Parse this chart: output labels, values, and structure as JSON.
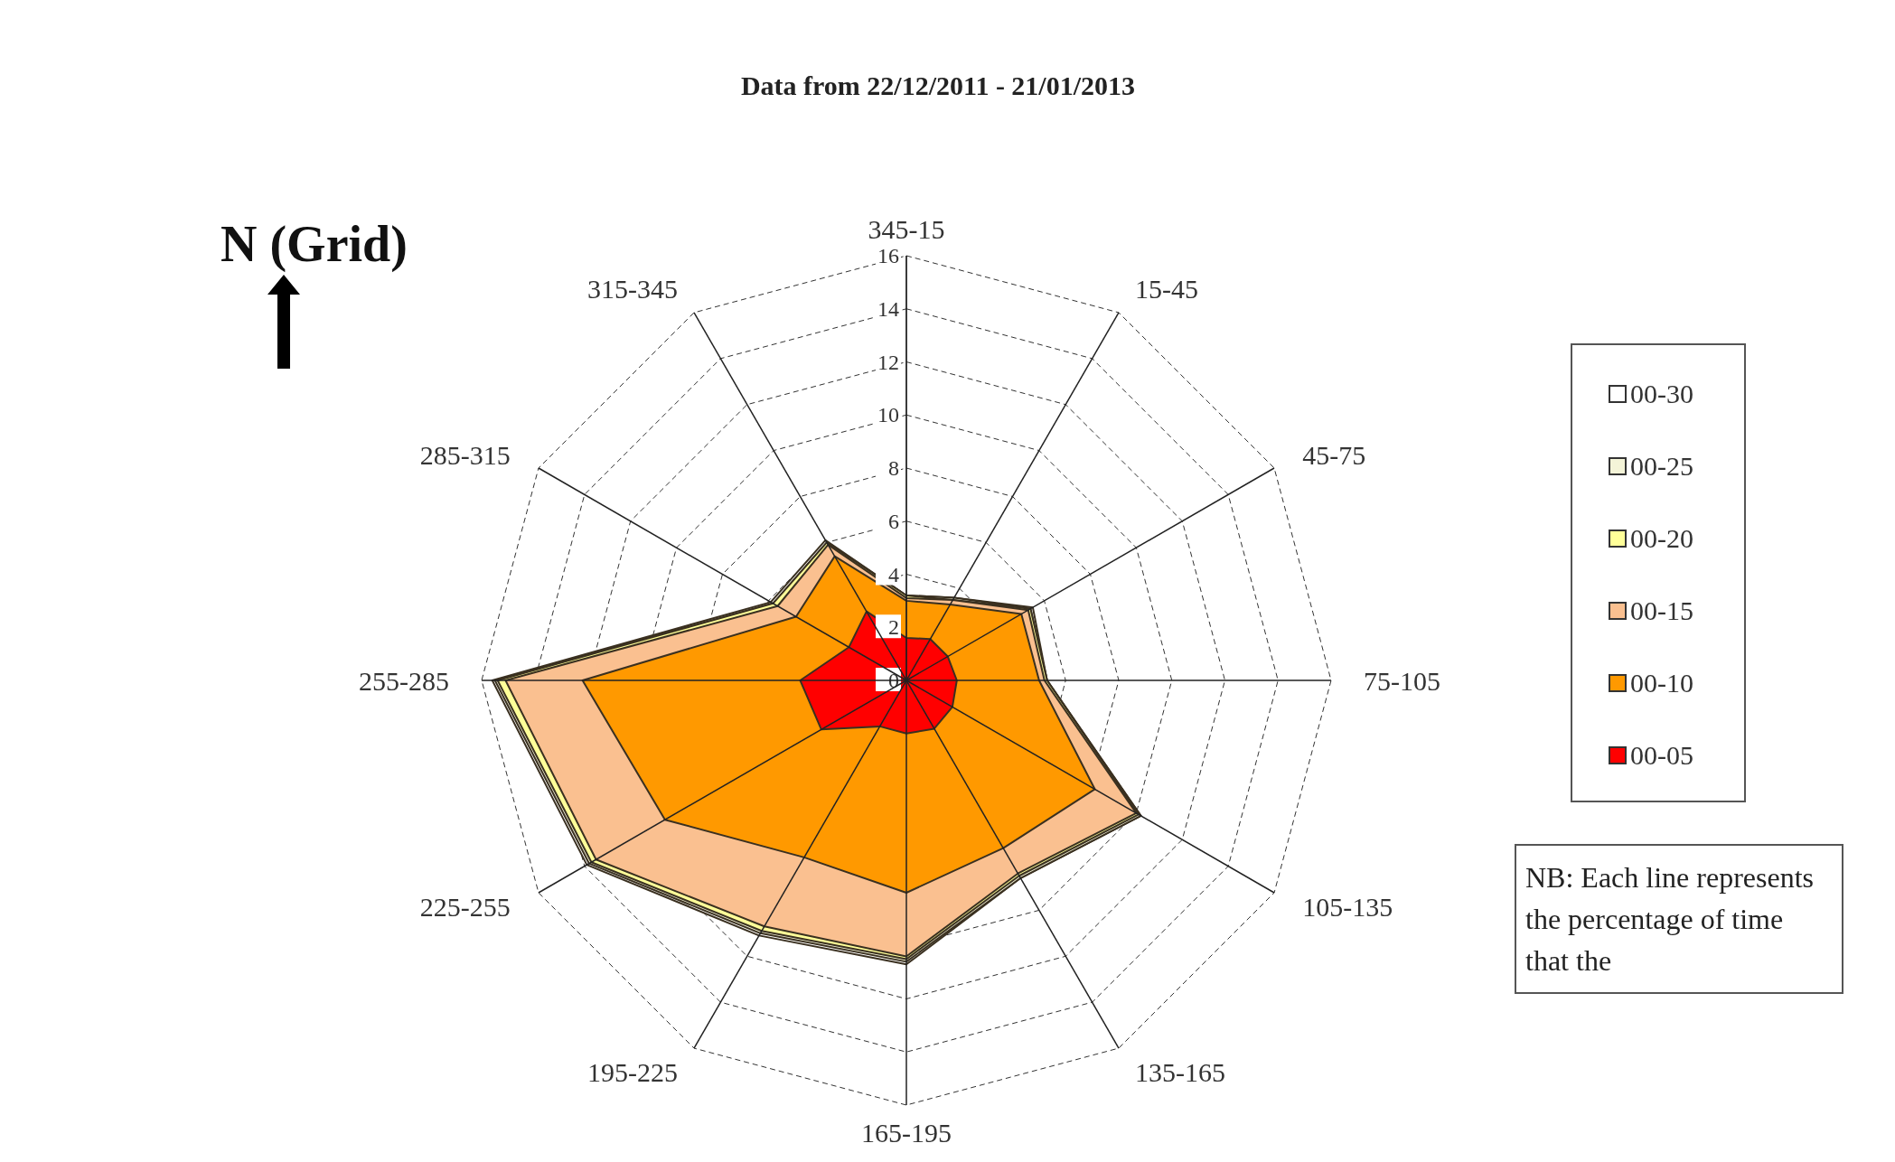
{
  "chart_data": {
    "type": "radar",
    "title": "Data from 22/12/2011 - 21/01/2013",
    "categories": [
      "345-15",
      "15-45",
      "45-75",
      "75-105",
      "105-135",
      "135-165",
      "165-195",
      "195-225",
      "225-255",
      "255-285",
      "285-315",
      "315-345"
    ],
    "series": [
      {
        "name": "00-30",
        "color": "#ffffff",
        "values": [
          3.2,
          3.6,
          5.5,
          5.3,
          10.2,
          8.6,
          10.7,
          11.1,
          13.9,
          15.6,
          5.9,
          6.1
        ]
      },
      {
        "name": "00-25",
        "color": "#f4f4d8",
        "values": [
          3.2,
          3.6,
          5.4,
          5.3,
          10.2,
          8.6,
          10.6,
          11.0,
          13.8,
          15.5,
          5.8,
          6.0
        ]
      },
      {
        "name": "00-20",
        "color": "#ffff99",
        "values": [
          3.2,
          3.5,
          5.4,
          5.3,
          10.1,
          8.5,
          10.5,
          10.9,
          13.7,
          15.4,
          5.8,
          6.0
        ]
      },
      {
        "name": "00-15",
        "color": "#fac090",
        "values": [
          3.1,
          3.5,
          5.3,
          5.2,
          10.0,
          8.4,
          10.4,
          10.7,
          13.5,
          15.1,
          5.6,
          5.9
        ]
      },
      {
        "name": "00-10",
        "color": "#ff9900",
        "values": [
          3.0,
          3.3,
          5.0,
          5.0,
          8.2,
          7.3,
          8.0,
          7.7,
          10.5,
          12.2,
          4.8,
          5.4
        ]
      },
      {
        "name": "00-05",
        "color": "#ff0000",
        "values": [
          1.6,
          1.8,
          1.8,
          1.9,
          2.0,
          2.1,
          2.0,
          2.0,
          3.7,
          4.0,
          2.5,
          3.0
        ]
      }
    ],
    "ylim": [
      0,
      16
    ],
    "yticks": [
      0,
      2,
      4,
      6,
      8,
      10,
      12,
      14,
      16
    ],
    "grid": true,
    "legend": "right",
    "annotations": [
      "N (Grid)",
      "NB: Each line represents the percentage of time that the"
    ]
  }
}
